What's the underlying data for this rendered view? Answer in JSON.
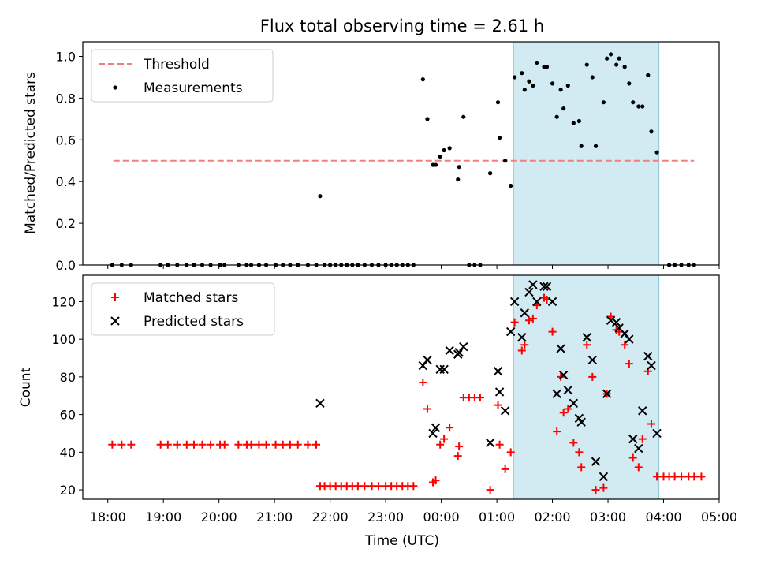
{
  "title": "Flux total observing time = 2.61 h",
  "xlabel": "Time (UTC)",
  "x_tick_labels": [
    "18:00",
    "19:00",
    "20:00",
    "21:00",
    "22:00",
    "23:00",
    "00:00",
    "01:00",
    "02:00",
    "03:00",
    "04:00",
    "05:00"
  ],
  "chart_data": [
    {
      "type": "scatter",
      "panel": "top",
      "ylabel": "Matched/Predicted stars",
      "ylim": [
        0.0,
        1.07
      ],
      "yticks": [
        "0.0",
        "0.2",
        "0.4",
        "0.6",
        "0.8",
        "1.0"
      ],
      "x_unit": "hours since 18:00 UTC",
      "xlim": [
        -0.45,
        11.0
      ],
      "legend_position": "upper-left",
      "threshold": {
        "name": "Threshold",
        "value": 0.5,
        "x_range": [
          0.1,
          10.55
        ],
        "color": "#f08080"
      },
      "highlight_span": {
        "x_from": "01:18",
        "x_to": "03:55",
        "color": "#add8e6"
      },
      "series": [
        {
          "name": "Measurements",
          "color": "#000000",
          "points": [
            [
              0.08,
              0
            ],
            [
              0.25,
              0
            ],
            [
              0.42,
              0
            ],
            [
              0.95,
              0
            ],
            [
              1.08,
              0
            ],
            [
              1.25,
              0
            ],
            [
              1.42,
              0
            ],
            [
              1.55,
              0
            ],
            [
              1.7,
              0
            ],
            [
              1.85,
              0
            ],
            [
              2.02,
              0
            ],
            [
              2.1,
              0
            ],
            [
              2.35,
              0
            ],
            [
              2.5,
              0
            ],
            [
              2.58,
              0
            ],
            [
              2.72,
              0
            ],
            [
              2.85,
              0
            ],
            [
              3.02,
              0
            ],
            [
              3.15,
              0
            ],
            [
              3.28,
              0
            ],
            [
              3.42,
              0
            ],
            [
              3.6,
              0
            ],
            [
              3.75,
              0
            ],
            [
              3.82,
              0.33
            ],
            [
              3.9,
              0
            ],
            [
              4.0,
              0
            ],
            [
              4.1,
              0
            ],
            [
              4.2,
              0
            ],
            [
              4.3,
              0
            ],
            [
              4.4,
              0
            ],
            [
              4.5,
              0
            ],
            [
              4.62,
              0
            ],
            [
              4.75,
              0
            ],
            [
              4.87,
              0
            ],
            [
              5.0,
              0
            ],
            [
              5.1,
              0
            ],
            [
              5.2,
              0
            ],
            [
              5.3,
              0
            ],
            [
              5.4,
              0
            ],
            [
              5.5,
              0
            ],
            [
              5.67,
              0.89
            ],
            [
              5.75,
              0.7
            ],
            [
              5.85,
              0.48
            ],
            [
              5.9,
              0.48
            ],
            [
              5.98,
              0.52
            ],
            [
              6.05,
              0.55
            ],
            [
              6.15,
              0.56
            ],
            [
              6.3,
              0.41
            ],
            [
              6.32,
              0.47
            ],
            [
              6.4,
              0.71
            ],
            [
              6.5,
              0
            ],
            [
              6.6,
              0
            ],
            [
              6.7,
              0
            ],
            [
              6.88,
              0.44
            ],
            [
              7.02,
              0.78
            ],
            [
              7.05,
              0.61
            ],
            [
              7.15,
              0.5
            ],
            [
              7.25,
              0.38
            ],
            [
              7.32,
              0.9
            ],
            [
              7.45,
              0.92
            ],
            [
              7.5,
              0.84
            ],
            [
              7.58,
              0.88
            ],
            [
              7.65,
              0.86
            ],
            [
              7.72,
              0.97
            ],
            [
              7.85,
              0.95
            ],
            [
              7.9,
              0.95
            ],
            [
              8.0,
              0.87
            ],
            [
              8.08,
              0.71
            ],
            [
              8.15,
              0.84
            ],
            [
              8.2,
              0.75
            ],
            [
              8.28,
              0.86
            ],
            [
              8.38,
              0.68
            ],
            [
              8.48,
              0.69
            ],
            [
              8.52,
              0.57
            ],
            [
              8.62,
              0.96
            ],
            [
              8.72,
              0.9
            ],
            [
              8.78,
              0.57
            ],
            [
              8.92,
              0.78
            ],
            [
              8.98,
              0.99
            ],
            [
              9.05,
              1.01
            ],
            [
              9.15,
              0.96
            ],
            [
              9.2,
              0.99
            ],
            [
              9.3,
              0.95
            ],
            [
              9.38,
              0.87
            ],
            [
              9.45,
              0.78
            ],
            [
              9.55,
              0.76
            ],
            [
              9.62,
              0.76
            ],
            [
              9.72,
              0.91
            ],
            [
              9.78,
              0.64
            ],
            [
              9.88,
              0.54
            ],
            [
              10.1,
              0
            ],
            [
              10.2,
              0
            ],
            [
              10.32,
              0
            ],
            [
              10.45,
              0
            ],
            [
              10.55,
              0
            ]
          ]
        }
      ]
    },
    {
      "type": "scatter",
      "panel": "bottom",
      "ylabel": "Count",
      "ylim": [
        15,
        134
      ],
      "yticks": [
        "20",
        "40",
        "60",
        "80",
        "100",
        "120"
      ],
      "x_unit": "hours since 18:00 UTC",
      "xlim": [
        -0.45,
        11.0
      ],
      "legend_position": "upper-left",
      "highlight_span": {
        "x_from": "01:18",
        "x_to": "03:55",
        "color": "#add8e6"
      },
      "series": [
        {
          "name": "Matched stars",
          "marker": "plus",
          "color": "#ff0000",
          "points": [
            [
              0.08,
              44
            ],
            [
              0.25,
              44
            ],
            [
              0.42,
              44
            ],
            [
              0.95,
              44
            ],
            [
              1.08,
              44
            ],
            [
              1.25,
              44
            ],
            [
              1.42,
              44
            ],
            [
              1.55,
              44
            ],
            [
              1.7,
              44
            ],
            [
              1.85,
              44
            ],
            [
              2.02,
              44
            ],
            [
              2.1,
              44
            ],
            [
              2.35,
              44
            ],
            [
              2.5,
              44
            ],
            [
              2.58,
              44
            ],
            [
              2.72,
              44
            ],
            [
              2.85,
              44
            ],
            [
              3.02,
              44
            ],
            [
              3.15,
              44
            ],
            [
              3.28,
              44
            ],
            [
              3.42,
              44
            ],
            [
              3.6,
              44
            ],
            [
              3.75,
              44
            ],
            [
              3.82,
              22
            ],
            [
              3.9,
              22
            ],
            [
              4.0,
              22
            ],
            [
              4.1,
              22
            ],
            [
              4.2,
              22
            ],
            [
              4.3,
              22
            ],
            [
              4.4,
              22
            ],
            [
              4.5,
              22
            ],
            [
              4.62,
              22
            ],
            [
              4.75,
              22
            ],
            [
              4.87,
              22
            ],
            [
              5.0,
              22
            ],
            [
              5.1,
              22
            ],
            [
              5.2,
              22
            ],
            [
              5.3,
              22
            ],
            [
              5.4,
              22
            ],
            [
              5.5,
              22
            ],
            [
              5.67,
              77
            ],
            [
              5.75,
              63
            ],
            [
              5.85,
              24
            ],
            [
              5.9,
              25
            ],
            [
              5.98,
              44
            ],
            [
              6.05,
              47
            ],
            [
              6.15,
              53
            ],
            [
              6.3,
              38
            ],
            [
              6.32,
              43
            ],
            [
              6.4,
              69
            ],
            [
              6.5,
              69
            ],
            [
              6.6,
              69
            ],
            [
              6.7,
              69
            ],
            [
              6.88,
              20
            ],
            [
              7.02,
              65
            ],
            [
              7.05,
              44
            ],
            [
              7.15,
              31
            ],
            [
              7.25,
              40
            ],
            [
              7.32,
              109
            ],
            [
              7.45,
              94
            ],
            [
              7.5,
              97
            ],
            [
              7.58,
              110
            ],
            [
              7.65,
              111
            ],
            [
              7.72,
              118
            ],
            [
              7.85,
              122
            ],
            [
              7.9,
              121
            ],
            [
              8.0,
              104
            ],
            [
              8.08,
              51
            ],
            [
              8.15,
              80
            ],
            [
              8.2,
              61
            ],
            [
              8.28,
              63
            ],
            [
              8.38,
              45
            ],
            [
              8.48,
              40
            ],
            [
              8.52,
              32
            ],
            [
              8.62,
              97
            ],
            [
              8.72,
              80
            ],
            [
              8.78,
              20
            ],
            [
              8.92,
              21
            ],
            [
              8.98,
              71
            ],
            [
              9.05,
              112
            ],
            [
              9.15,
              105
            ],
            [
              9.2,
              104
            ],
            [
              9.3,
              97
            ],
            [
              9.38,
              87
            ],
            [
              9.45,
              37
            ],
            [
              9.55,
              32
            ],
            [
              9.62,
              47
            ],
            [
              9.72,
              83
            ],
            [
              9.78,
              55
            ],
            [
              9.88,
              27
            ],
            [
              10.0,
              27
            ],
            [
              10.1,
              27
            ],
            [
              10.2,
              27
            ],
            [
              10.32,
              27
            ],
            [
              10.45,
              27
            ],
            [
              10.55,
              27
            ],
            [
              10.68,
              27
            ]
          ]
        },
        {
          "name": "Predicted stars",
          "marker": "x",
          "color": "#000000",
          "points": [
            [
              3.82,
              66
            ],
            [
              5.67,
              86
            ],
            [
              5.75,
              89
            ],
            [
              5.85,
              50
            ],
            [
              5.9,
              53
            ],
            [
              5.98,
              84
            ],
            [
              6.05,
              84
            ],
            [
              6.15,
              94
            ],
            [
              6.3,
              92
            ],
            [
              6.32,
              93
            ],
            [
              6.4,
              96
            ],
            [
              6.88,
              45
            ],
            [
              7.02,
              83
            ],
            [
              7.05,
              72
            ],
            [
              7.15,
              62
            ],
            [
              7.25,
              104
            ],
            [
              7.32,
              120
            ],
            [
              7.45,
              101
            ],
            [
              7.5,
              114
            ],
            [
              7.58,
              125
            ],
            [
              7.65,
              129
            ],
            [
              7.72,
              120
            ],
            [
              7.85,
              128
            ],
            [
              7.9,
              128
            ],
            [
              8.0,
              120
            ],
            [
              8.08,
              71
            ],
            [
              8.15,
              95
            ],
            [
              8.2,
              81
            ],
            [
              8.28,
              73
            ],
            [
              8.38,
              66
            ],
            [
              8.48,
              58
            ],
            [
              8.52,
              56
            ],
            [
              8.62,
              101
            ],
            [
              8.72,
              89
            ],
            [
              8.78,
              35
            ],
            [
              8.92,
              27
            ],
            [
              8.98,
              71
            ],
            [
              9.05,
              110
            ],
            [
              9.15,
              109
            ],
            [
              9.2,
              106
            ],
            [
              9.3,
              103
            ],
            [
              9.38,
              100
            ],
            [
              9.45,
              47
            ],
            [
              9.55,
              42
            ],
            [
              9.62,
              62
            ],
            [
              9.72,
              91
            ],
            [
              9.78,
              86
            ],
            [
              9.88,
              50
            ]
          ]
        }
      ]
    }
  ]
}
